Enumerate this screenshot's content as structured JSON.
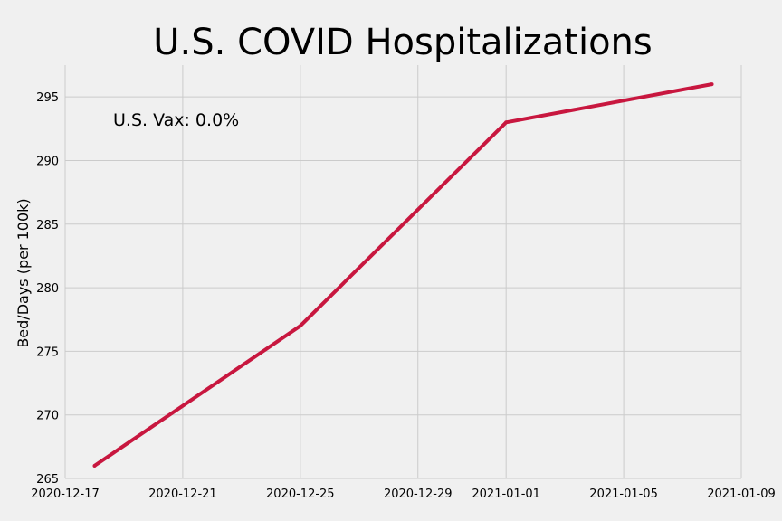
{
  "chart_data": {
    "type": "line",
    "title": "U.S. COVID Hospitalizations",
    "xlabel": "",
    "ylabel": "Bed/Days (per 100k)",
    "annotation": "U.S. Vax: 0.0%",
    "x_ticks": [
      "2020-12-17",
      "2020-12-21",
      "2020-12-25",
      "2020-12-29",
      "2021-01-01",
      "2021-01-05",
      "2021-01-09"
    ],
    "y_ticks": [
      265,
      270,
      275,
      280,
      285,
      290,
      295
    ],
    "xlim": [
      "2020-12-17",
      "2021-01-09"
    ],
    "ylim": [
      265,
      297.5
    ],
    "grid": true,
    "series": [
      {
        "color": "#c8173f",
        "points": [
          {
            "x": "2020-12-18",
            "y": 266
          },
          {
            "x": "2020-12-25",
            "y": 277
          },
          {
            "x": "2021-01-01",
            "y": 293
          },
          {
            "x": "2021-01-08",
            "y": 296
          }
        ]
      }
    ]
  }
}
